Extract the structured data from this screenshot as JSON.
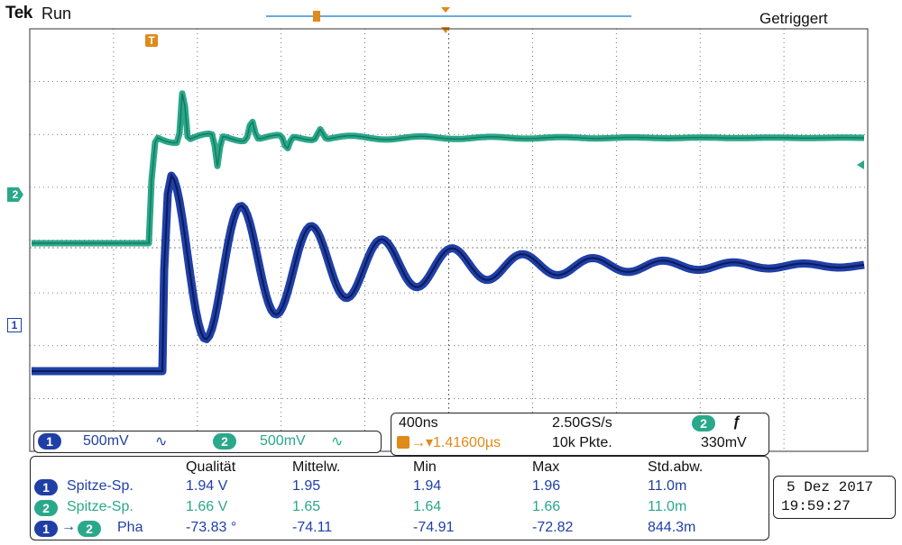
{
  "header": {
    "brand": "Tek",
    "run_state": "Run",
    "trigger_status": "Getriggert"
  },
  "markers": {
    "ch2": "2",
    "ch1": "1",
    "trigger_top": "T"
  },
  "channels": [
    {
      "id": "1",
      "scale": "500mV",
      "coupling_symbol": "∿"
    },
    {
      "id": "2",
      "scale": "500mV",
      "coupling_symbol": "∿"
    }
  ],
  "timebase": {
    "time_div": "400ns",
    "sample_rate": "2.50GS/s",
    "trigger_source": "2",
    "trigger_slope_symbol": "ƒ",
    "trigger_offset": "1.41600µs",
    "record_length": "10k Pkte.",
    "trigger_level": "330mV"
  },
  "measurements": {
    "headers": [
      "Qualität",
      "Mittelw.",
      "Min",
      "Max",
      "Std.abw."
    ],
    "rows": [
      {
        "source": "1",
        "source2": "",
        "name": "Spitze-Sp.",
        "value": "1.94 V",
        "mean": "1.95",
        "min": "1.94",
        "max": "1.96",
        "std": "11.0m"
      },
      {
        "source": "2",
        "source2": "",
        "name": "Spitze-Sp.",
        "value": "1.66 V",
        "mean": "1.65",
        "min": "1.64",
        "max": "1.66",
        "std": "11.0m"
      },
      {
        "source": "1",
        "source2": "2",
        "name": "Pha",
        "value": "-73.83 °",
        "mean": "-74.11",
        "min": "-74.91",
        "max": "-72.82",
        "std": "844.3m"
      }
    ]
  },
  "datetime": {
    "date": "5 Dez 2017",
    "time": "19:59:27"
  },
  "colors": {
    "ch1": "#1f3fa6",
    "ch2": "#2aa88a",
    "accent": "#e08a1a"
  }
}
